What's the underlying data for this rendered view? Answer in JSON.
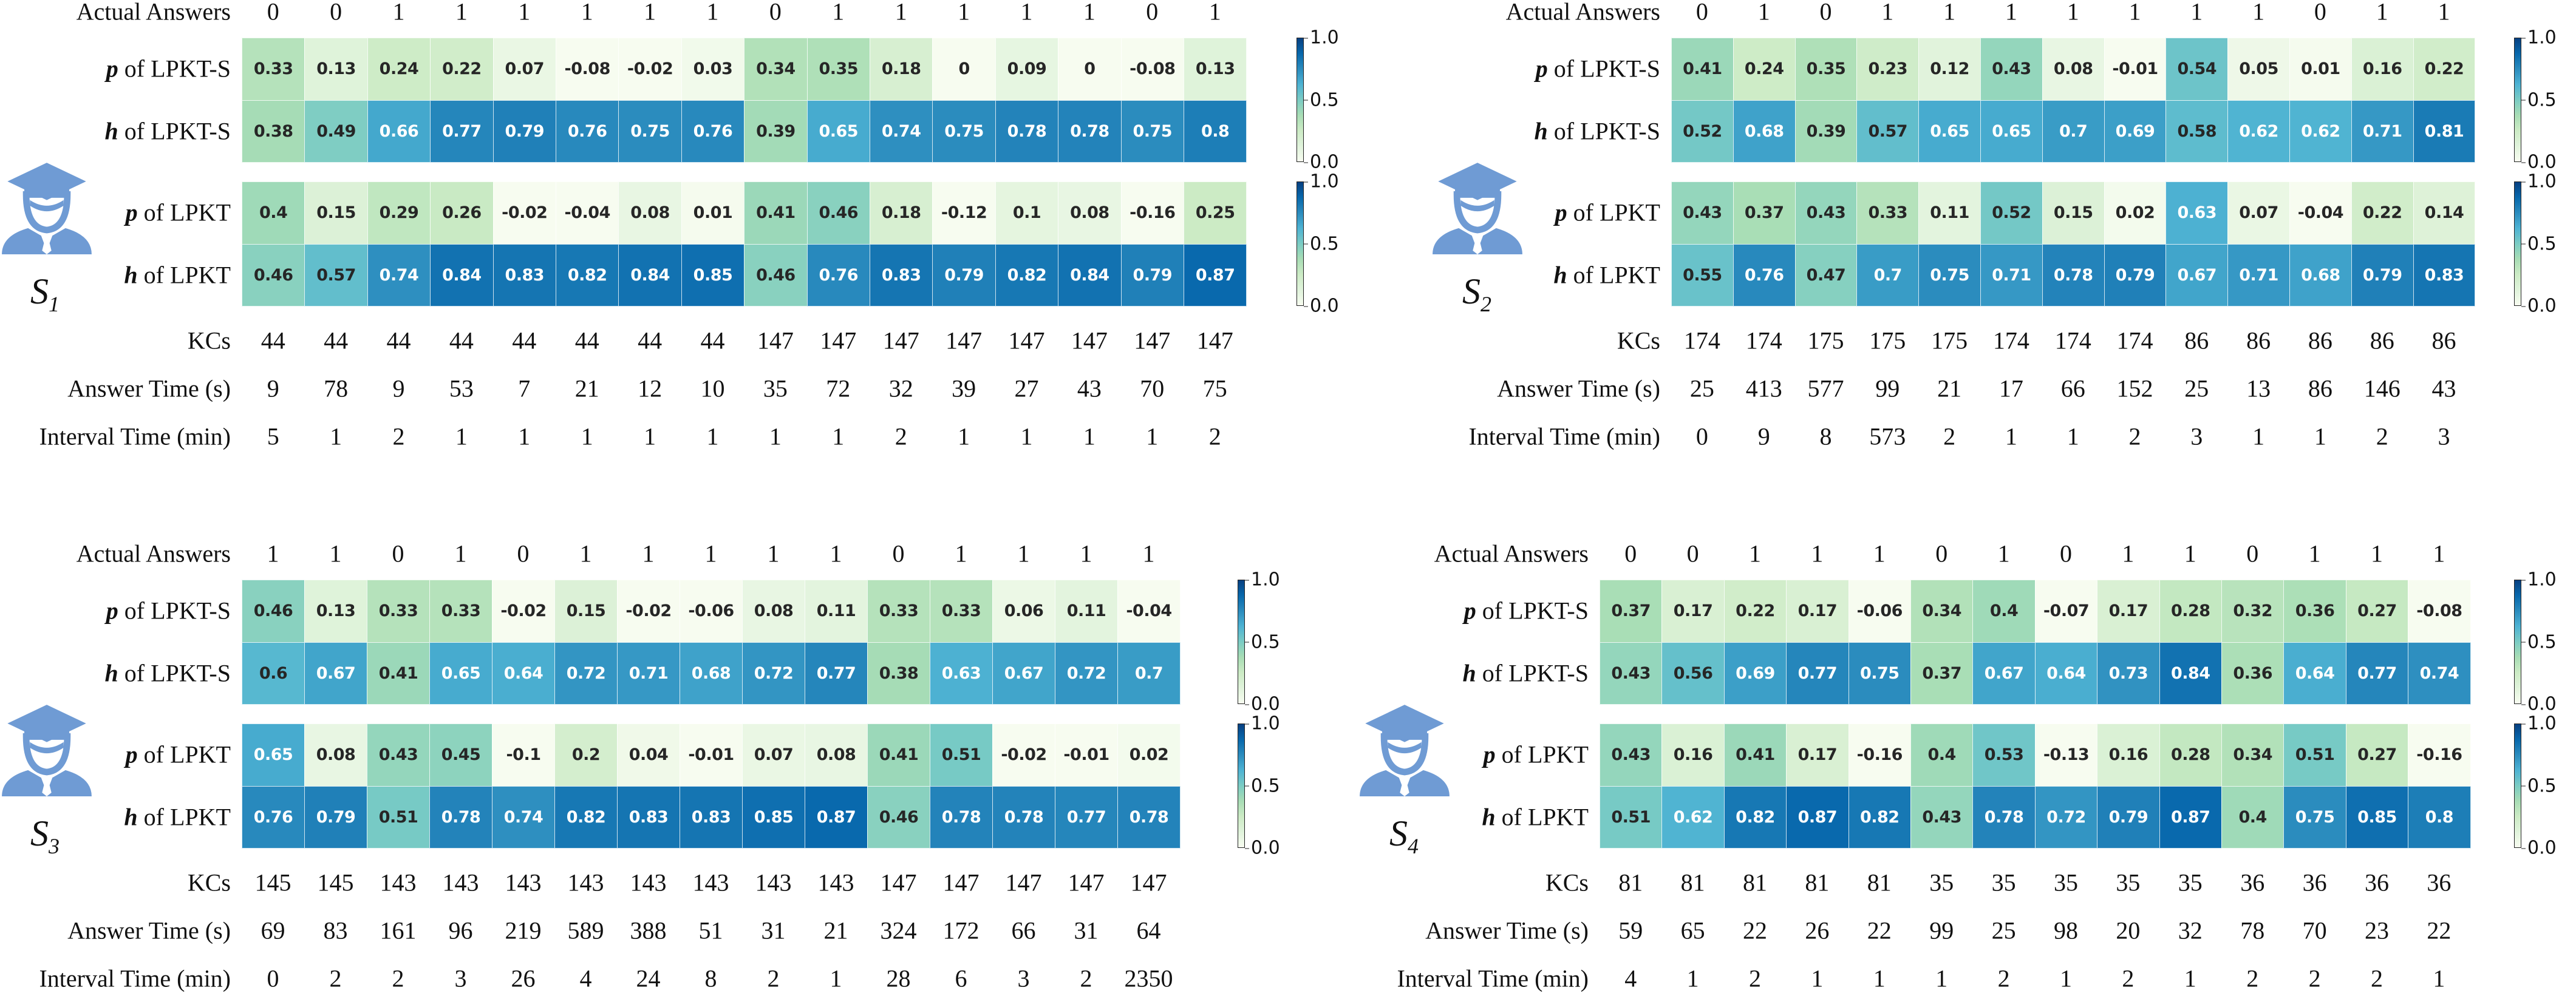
{
  "row_labels": {
    "answers": "Actual Answers",
    "p_lpkts": {
      "var": "p",
      "text": " of LPKT-S"
    },
    "h_lpkts": {
      "var": "h",
      "text": " of LPKT-S"
    },
    "p_lpkt": {
      "var": "p",
      "text": " of LPKT"
    },
    "h_lpkt": {
      "var": "h",
      "text": " of LPKT"
    },
    "kcs": "KCs",
    "answer_time": "Answer Time (s)",
    "interval_time": "Interval Time (min)"
  },
  "colorbar_ticks": [
    "0.0",
    "0.5",
    "1.0"
  ],
  "colormap": [
    "#f7fcf0",
    "#e0f3db",
    "#ccebc5",
    "#a8ddb5",
    "#7bccc4",
    "#4eb3d3",
    "#2b8cbe",
    "#0868ac",
    "#084081"
  ],
  "chart_data": [
    {
      "type": "heatmap",
      "student": {
        "name": "S",
        "sub": "1"
      },
      "vrange": [
        0.0,
        1.0
      ],
      "answers": [
        0,
        0,
        1,
        1,
        1,
        1,
        1,
        1,
        0,
        1,
        1,
        1,
        1,
        1,
        0,
        1
      ],
      "p_lpkts": [
        0.33,
        0.13,
        0.24,
        0.22,
        0.07,
        -0.08,
        -0.02,
        0.03,
        0.34,
        0.35,
        0.18,
        0,
        0.09,
        0,
        -0.08,
        0.13
      ],
      "h_lpkts": [
        0.38,
        0.49,
        0.66,
        0.77,
        0.79,
        0.76,
        0.75,
        0.76,
        0.39,
        0.65,
        0.74,
        0.75,
        0.78,
        0.78,
        0.75,
        0.8
      ],
      "p_lpkt": [
        0.4,
        0.15,
        0.29,
        0.26,
        -0.02,
        -0.04,
        0.08,
        0.01,
        0.41,
        0.46,
        0.18,
        -0.12,
        0.1,
        0.08,
        -0.16,
        0.25
      ],
      "h_lpkt": [
        0.46,
        0.57,
        0.74,
        0.84,
        0.83,
        0.82,
        0.84,
        0.85,
        0.46,
        0.76,
        0.83,
        0.79,
        0.82,
        0.84,
        0.79,
        0.87
      ],
      "kcs": [
        44,
        44,
        44,
        44,
        44,
        44,
        44,
        44,
        147,
        147,
        147,
        147,
        147,
        147,
        147,
        147
      ],
      "answer_time": [
        9,
        78,
        9,
        53,
        7,
        21,
        12,
        10,
        35,
        72,
        32,
        39,
        27,
        43,
        70,
        75
      ],
      "interval_time": [
        5,
        1,
        2,
        1,
        1,
        1,
        1,
        1,
        1,
        1,
        2,
        1,
        1,
        1,
        1,
        2
      ]
    },
    {
      "type": "heatmap",
      "student": {
        "name": "S",
        "sub": "2"
      },
      "vrange": [
        0.0,
        1.0
      ],
      "answers": [
        0,
        1,
        0,
        1,
        1,
        1,
        1,
        1,
        1,
        1,
        0,
        1,
        1
      ],
      "p_lpkts": [
        0.41,
        0.24,
        0.35,
        0.23,
        0.12,
        0.43,
        0.08,
        -0.01,
        0.54,
        0.05,
        0.01,
        0.16,
        0.22
      ],
      "h_lpkts": [
        0.52,
        0.68,
        0.39,
        0.57,
        0.65,
        0.65,
        0.7,
        0.69,
        0.58,
        0.62,
        0.62,
        0.71,
        0.81
      ],
      "p_lpkt": [
        0.43,
        0.37,
        0.43,
        0.33,
        0.11,
        0.52,
        0.15,
        0.02,
        0.63,
        0.07,
        -0.04,
        0.22,
        0.14
      ],
      "h_lpkt": [
        0.55,
        0.76,
        0.47,
        0.7,
        0.75,
        0.71,
        0.78,
        0.79,
        0.67,
        0.71,
        0.68,
        0.79,
        0.83
      ],
      "kcs": [
        174,
        174,
        175,
        175,
        175,
        174,
        174,
        174,
        86,
        86,
        86,
        86,
        86
      ],
      "answer_time": [
        25,
        413,
        577,
        99,
        21,
        17,
        66,
        152,
        25,
        13,
        86,
        146,
        43
      ],
      "interval_time": [
        0,
        9,
        8,
        573,
        2,
        1,
        1,
        2,
        3,
        1,
        1,
        2,
        3
      ]
    },
    {
      "type": "heatmap",
      "student": {
        "name": "S",
        "sub": "3"
      },
      "vrange": [
        0.0,
        1.0
      ],
      "answers": [
        1,
        1,
        0,
        1,
        0,
        1,
        1,
        1,
        1,
        1,
        0,
        1,
        1,
        1,
        1
      ],
      "p_lpkts": [
        0.46,
        0.13,
        0.33,
        0.33,
        -0.02,
        0.15,
        -0.02,
        -0.06,
        0.08,
        0.11,
        0.33,
        0.33,
        0.06,
        0.11,
        -0.04
      ],
      "h_lpkts": [
        0.6,
        0.67,
        0.41,
        0.65,
        0.64,
        0.72,
        0.71,
        0.68,
        0.72,
        0.77,
        0.38,
        0.63,
        0.67,
        0.72,
        0.7
      ],
      "p_lpkt": [
        0.65,
        0.08,
        0.43,
        0.45,
        -0.1,
        0.2,
        0.04,
        -0.01,
        0.07,
        0.08,
        0.41,
        0.51,
        -0.02,
        -0.01,
        0.02
      ],
      "h_lpkt": [
        0.76,
        0.79,
        0.51,
        0.78,
        0.74,
        0.82,
        0.83,
        0.83,
        0.85,
        0.87,
        0.46,
        0.78,
        0.78,
        0.77,
        0.78
      ],
      "kcs": [
        145,
        145,
        143,
        143,
        143,
        143,
        143,
        143,
        143,
        143,
        147,
        147,
        147,
        147,
        147
      ],
      "answer_time": [
        69,
        83,
        161,
        96,
        219,
        589,
        388,
        51,
        31,
        21,
        324,
        172,
        66,
        31,
        64
      ],
      "interval_time": [
        0,
        2,
        2,
        3,
        26,
        4,
        24,
        8,
        2,
        1,
        28,
        6,
        3,
        2,
        2350
      ]
    },
    {
      "type": "heatmap",
      "student": {
        "name": "S",
        "sub": "4"
      },
      "vrange": [
        0.0,
        1.0
      ],
      "answers": [
        0,
        0,
        1,
        1,
        1,
        0,
        1,
        0,
        1,
        1,
        0,
        1,
        1,
        1
      ],
      "p_lpkts": [
        0.37,
        0.17,
        0.22,
        0.17,
        -0.06,
        0.34,
        0.4,
        -0.07,
        0.17,
        0.28,
        0.32,
        0.36,
        0.27,
        -0.08
      ],
      "h_lpkts": [
        0.43,
        0.56,
        0.69,
        0.77,
        0.75,
        0.37,
        0.67,
        0.64,
        0.73,
        0.84,
        0.36,
        0.64,
        0.77,
        0.74
      ],
      "p_lpkt": [
        0.43,
        0.16,
        0.41,
        0.17,
        -0.16,
        0.4,
        0.53,
        -0.13,
        0.16,
        0.28,
        0.34,
        0.51,
        0.27,
        -0.16
      ],
      "h_lpkt": [
        0.51,
        0.62,
        0.82,
        0.87,
        0.82,
        0.43,
        0.78,
        0.72,
        0.79,
        0.87,
        0.4,
        0.75,
        0.85,
        0.8
      ],
      "kcs": [
        81,
        81,
        81,
        81,
        81,
        35,
        35,
        35,
        35,
        35,
        36,
        36,
        36,
        36
      ],
      "answer_time": [
        59,
        65,
        22,
        26,
        22,
        99,
        25,
        98,
        20,
        32,
        78,
        70,
        23,
        22
      ],
      "interval_time": [
        4,
        1,
        2,
        1,
        1,
        1,
        2,
        1,
        2,
        1,
        2,
        2,
        2,
        1
      ]
    }
  ]
}
